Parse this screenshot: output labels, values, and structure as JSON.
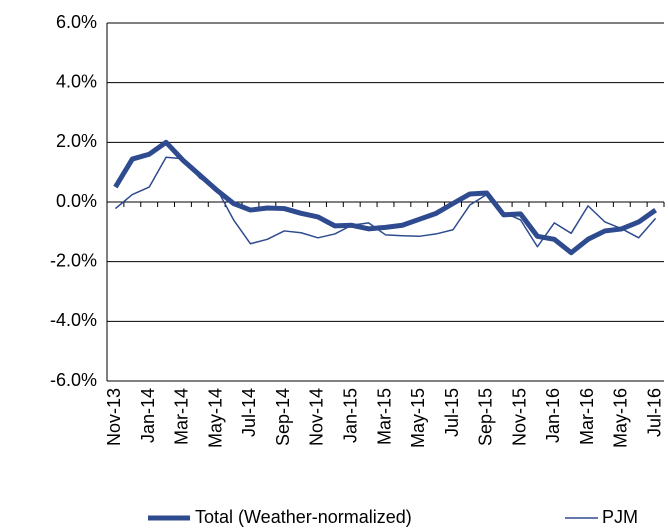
{
  "chart_data": {
    "type": "line",
    "categories": [
      "Nov-13",
      null,
      "Jan-14",
      null,
      "Mar-14",
      null,
      "May-14",
      null,
      "Jul-14",
      null,
      "Sep-14",
      null,
      "Nov-14",
      null,
      "Jan-15",
      null,
      "Mar-15",
      null,
      "May-15",
      null,
      "Jul-15",
      null,
      "Sep-15",
      null,
      "Nov-15",
      null,
      "Jan-16",
      null,
      "Mar-16",
      null,
      "May-16",
      null,
      "Jul-16"
    ],
    "series": [
      {
        "name": "Total (Weather-normalized)",
        "color": "#2f4b8f",
        "values": [
          0.5,
          1.44,
          1.6,
          2.0,
          1.4,
          0.9,
          0.4,
          -0.05,
          -0.27,
          -0.2,
          -0.22,
          -0.38,
          -0.5,
          -0.8,
          -0.78,
          -0.9,
          -0.85,
          -0.78,
          -0.58,
          -0.38,
          -0.05,
          0.27,
          0.3,
          -0.43,
          -0.4,
          -1.15,
          -1.25,
          -1.7,
          -1.25,
          -0.97,
          -0.9,
          -0.67,
          -0.27
        ]
      },
      {
        "name": "PJM",
        "color": "#2f4b8f",
        "values": [
          -0.22,
          0.25,
          0.5,
          1.5,
          1.45,
          0.8,
          0.45,
          -0.6,
          -1.4,
          -1.25,
          -0.97,
          -1.03,
          -1.2,
          -1.07,
          -0.78,
          -0.7,
          -1.1,
          -1.13,
          -1.15,
          -1.07,
          -0.93,
          -0.1,
          0.25,
          -0.35,
          -0.6,
          -1.5,
          -0.7,
          -1.05,
          -0.13,
          -0.67,
          -0.9,
          -1.2,
          -0.55
        ]
      }
    ],
    "ylim": [
      -6,
      6
    ],
    "yticks": [
      {
        "value": -6,
        "label": "-6.0%"
      },
      {
        "value": -4,
        "label": "-4.0%"
      },
      {
        "value": -2,
        "label": "-2.0%"
      },
      {
        "value": 0,
        "label": "0.0%"
      },
      {
        "value": 2,
        "label": "2.0%"
      },
      {
        "value": 4,
        "label": "4.0%"
      },
      {
        "value": 6,
        "label": "6.0%"
      }
    ],
    "grid": true
  }
}
